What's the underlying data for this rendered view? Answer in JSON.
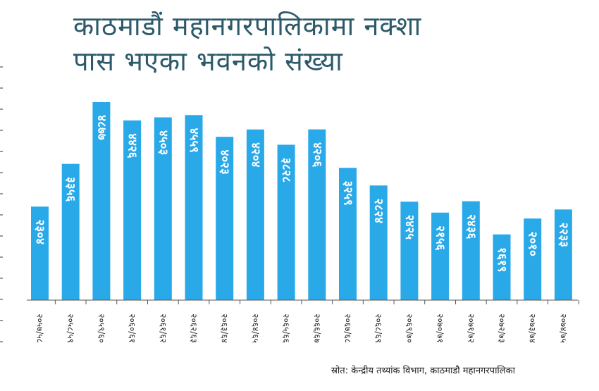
{
  "title_line1": "काठमाडौं महानगरपालिकामा नक्शा",
  "title_line2": "पास भएका भवनको संख्या",
  "source": "स्रोत: केन्द्रीय तथ्यांक विभाग, काठमाडौ महानगरपालिका",
  "colors": {
    "bar": "#2aa9e9",
    "bar_label": "#ffffff",
    "title": "#2c5a6a",
    "axis": "#555555"
  },
  "chart_data": {
    "type": "bar",
    "title": "काठमाडौं महानगरपालिकामा नक्शा पास भएका भवनको संख्या",
    "xlabel": "",
    "ylabel": "",
    "categories": [
      "२०५७/५८",
      "२०५८/५९",
      "२०५९/६०",
      "२०६०/६१",
      "२०६१/६२",
      "२०६२/६३",
      "२०६३/६४",
      "२०६४/६५",
      "२०६५/६६",
      "२०६६/६७",
      "२०६७/६८",
      "२०६८/६९",
      "२०६९/७०",
      "२०७०/७१",
      "२०७१/७२",
      "२०७२/७३",
      "२०७३/७४",
      "२०७४/७५"
    ],
    "values": [
      2304,
      3356,
      4877,
      4426,
      4503,
      4559,
      4023,
      4204,
      3828,
      4206,
      3259,
      2824,
      2425,
      2156,
      2436,
      1619,
      2010,
      2233
    ],
    "value_labels": [
      "२३०४",
      "३३५६",
      "४८७७",
      "४४२६",
      "४५०३",
      "४५५९",
      "४०२३",
      "४२०४",
      "३८२८",
      "४२०६",
      "३२५९",
      "२८२४",
      "२४२५",
      "२१५६",
      "२४३६",
      "१६१९",
      "२०१०",
      "२२३३"
    ],
    "ylim": [
      0,
      5000
    ],
    "grid": false,
    "legend": "none"
  }
}
